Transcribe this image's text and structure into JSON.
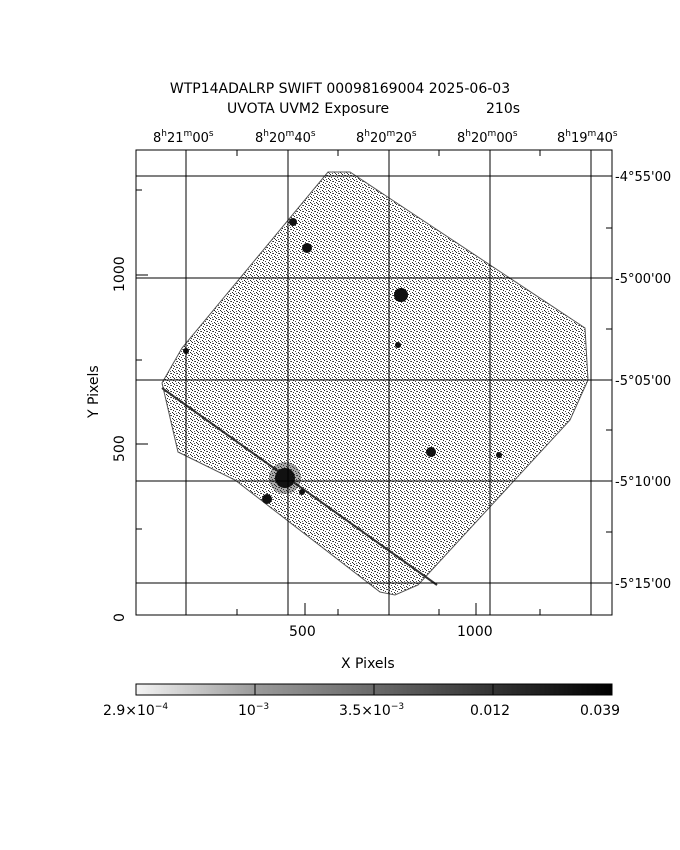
{
  "title": {
    "line1": "WTP14ADALRP SWIFT 00098169004 2025-06-03",
    "line2": "UVOTA UVM2 Exposure",
    "line2_exposure": "210s"
  },
  "ra_ticks": [
    {
      "h": "8",
      "m": "21",
      "s": "00"
    },
    {
      "h": "8",
      "m": "20",
      "s": "40"
    },
    {
      "h": "8",
      "m": "20",
      "s": "20"
    },
    {
      "h": "8",
      "m": "20",
      "s": "00"
    },
    {
      "h": "8",
      "m": "19",
      "s": "40"
    }
  ],
  "dec_ticks": [
    "-4°55'00",
    "-5°00'00",
    "-5°05'00",
    "-5°10'00",
    "-5°15'00"
  ],
  "x_axis": {
    "label": "X Pixels",
    "ticks": [
      "500",
      "1000"
    ]
  },
  "y_axis": {
    "label": "Y Pixels",
    "ticks": [
      "0",
      "500",
      "1000"
    ]
  },
  "colorbar": {
    "labels": [
      {
        "mant": "2.9×10",
        "exp": "−4"
      },
      {
        "mant": "10",
        "exp": "−3"
      },
      {
        "mant": "3.5×10",
        "exp": "−3"
      },
      {
        "mant": "0.012",
        "exp": ""
      },
      {
        "mant": "0.039",
        "exp": ""
      }
    ]
  }
}
